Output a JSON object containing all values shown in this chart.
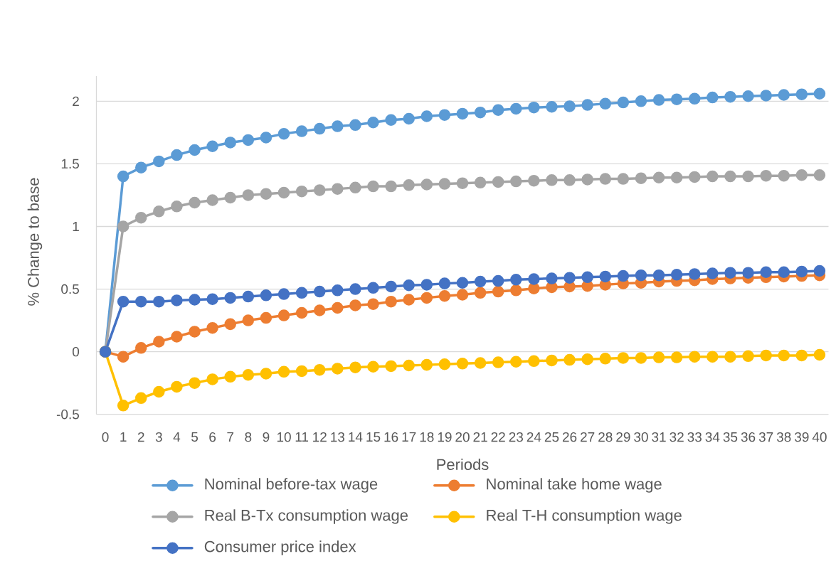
{
  "chart_data": {
    "type": "line",
    "xlabel": "Periods",
    "ylabel": "% Change to base",
    "categories": [
      "0",
      "1",
      "2",
      "3",
      "4",
      "5",
      "6",
      "7",
      "8",
      "9",
      "10",
      "11",
      "12",
      "13",
      "14",
      "15",
      "16",
      "17",
      "18",
      "19",
      "20",
      "21",
      "22",
      "23",
      "24",
      "25",
      "26",
      "27",
      "28",
      "29",
      "30",
      "31",
      "32",
      "33",
      "34",
      "35",
      "36",
      "37",
      "38",
      "39",
      "40"
    ],
    "series": [
      {
        "name": "Nominal before-tax wage",
        "color": "#5b9bd5",
        "values": [
          0,
          1.4,
          1.47,
          1.52,
          1.57,
          1.61,
          1.64,
          1.67,
          1.69,
          1.71,
          1.74,
          1.76,
          1.78,
          1.8,
          1.81,
          1.83,
          1.85,
          1.86,
          1.88,
          1.89,
          1.9,
          1.91,
          1.93,
          1.94,
          1.95,
          1.955,
          1.96,
          1.97,
          1.98,
          1.99,
          2.0,
          2.01,
          2.015,
          2.02,
          2.03,
          2.035,
          2.04,
          2.045,
          2.05,
          2.055,
          2.06
        ]
      },
      {
        "name": "Nominal take home wage",
        "color": "#ed7d31",
        "values": [
          0,
          -0.04,
          0.03,
          0.08,
          0.12,
          0.16,
          0.19,
          0.22,
          0.25,
          0.27,
          0.29,
          0.31,
          0.33,
          0.35,
          0.37,
          0.38,
          0.4,
          0.415,
          0.43,
          0.445,
          0.455,
          0.47,
          0.48,
          0.49,
          0.505,
          0.515,
          0.52,
          0.525,
          0.535,
          0.545,
          0.55,
          0.56,
          0.565,
          0.57,
          0.58,
          0.585,
          0.59,
          0.595,
          0.6,
          0.605,
          0.61
        ]
      },
      {
        "name": "Real B-Tx consumption wage",
        "color": "#a5a5a5",
        "values": [
          0,
          1.0,
          1.07,
          1.12,
          1.16,
          1.19,
          1.21,
          1.23,
          1.25,
          1.26,
          1.27,
          1.28,
          1.29,
          1.3,
          1.31,
          1.32,
          1.32,
          1.33,
          1.335,
          1.34,
          1.345,
          1.35,
          1.355,
          1.36,
          1.365,
          1.37,
          1.37,
          1.375,
          1.38,
          1.38,
          1.385,
          1.39,
          1.39,
          1.395,
          1.4,
          1.4,
          1.4,
          1.405,
          1.405,
          1.41,
          1.41
        ]
      },
      {
        "name": "Real T-H consumption wage",
        "color": "#ffc000",
        "values": [
          0,
          -0.43,
          -0.37,
          -0.32,
          -0.28,
          -0.25,
          -0.22,
          -0.2,
          -0.185,
          -0.175,
          -0.16,
          -0.155,
          -0.145,
          -0.135,
          -0.125,
          -0.12,
          -0.115,
          -0.11,
          -0.105,
          -0.1,
          -0.095,
          -0.09,
          -0.085,
          -0.08,
          -0.075,
          -0.07,
          -0.065,
          -0.06,
          -0.055,
          -0.05,
          -0.05,
          -0.045,
          -0.045,
          -0.04,
          -0.04,
          -0.04,
          -0.035,
          -0.03,
          -0.03,
          -0.03,
          -0.025
        ]
      },
      {
        "name": "Consumer price index",
        "color": "#4472c4",
        "values": [
          0,
          0.4,
          0.4,
          0.4,
          0.41,
          0.415,
          0.42,
          0.43,
          0.44,
          0.45,
          0.46,
          0.47,
          0.48,
          0.49,
          0.5,
          0.51,
          0.52,
          0.53,
          0.535,
          0.545,
          0.55,
          0.56,
          0.565,
          0.575,
          0.58,
          0.585,
          0.59,
          0.595,
          0.6,
          0.605,
          0.61,
          0.61,
          0.615,
          0.62,
          0.625,
          0.63,
          0.63,
          0.635,
          0.635,
          0.64,
          0.645
        ]
      }
    ],
    "ylim": [
      -0.5,
      2.2
    ],
    "yticks": [
      -0.5,
      0,
      0.5,
      1,
      1.5,
      2
    ],
    "grid": "y",
    "legend": "bottom",
    "marker": "circle",
    "line_style": "solid"
  }
}
